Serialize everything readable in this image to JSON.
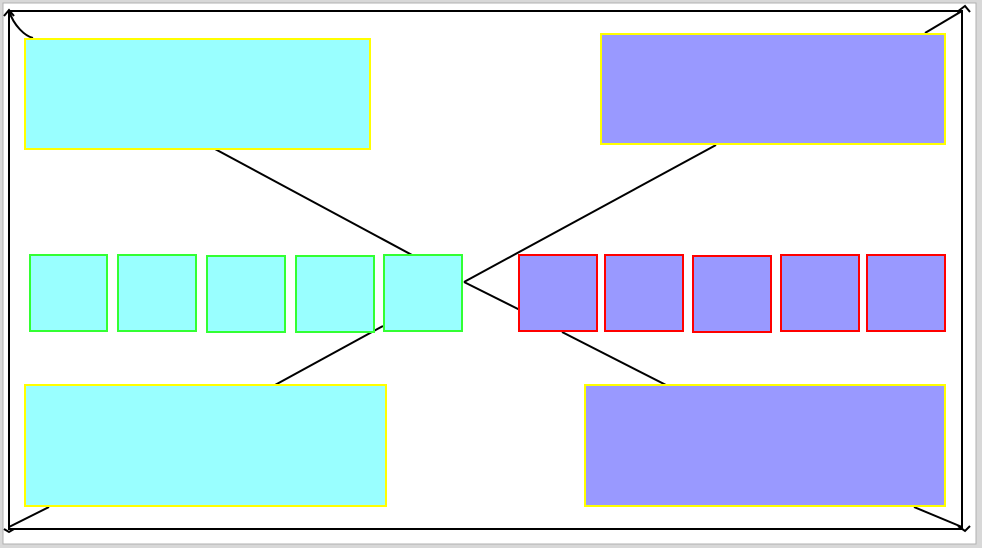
{
  "diagram": {
    "colors": {
      "page_bg": "#d8d8d8",
      "canvas_bg": "#ffffff",
      "outline": "#000000",
      "cyan_fill": "#99ffff",
      "blue_fill": "#9999ff",
      "yellow_border": "#ffff00",
      "green_border": "#33ff33",
      "red_border": "#ff0000"
    },
    "boxes": {
      "top_left": {
        "fill": "cyan_fill",
        "border": "yellow_border"
      },
      "top_right": {
        "fill": "blue_fill",
        "border": "yellow_border"
      },
      "bottom_left": {
        "fill": "cyan_fill",
        "border": "yellow_border"
      },
      "bottom_right": {
        "fill": "blue_fill",
        "border": "yellow_border"
      }
    },
    "small_boxes_left": [
      {
        "fill": "cyan_fill",
        "border": "green_border"
      },
      {
        "fill": "cyan_fill",
        "border": "green_border"
      },
      {
        "fill": "cyan_fill",
        "border": "green_border"
      },
      {
        "fill": "cyan_fill",
        "border": "green_border"
      },
      {
        "fill": "cyan_fill",
        "border": "green_border"
      }
    ],
    "small_boxes_right": [
      {
        "fill": "blue_fill",
        "border": "red_border"
      },
      {
        "fill": "blue_fill",
        "border": "red_border"
      },
      {
        "fill": "blue_fill",
        "border": "red_border"
      },
      {
        "fill": "blue_fill",
        "border": "red_border"
      },
      {
        "fill": "blue_fill",
        "border": "red_border"
      }
    ]
  }
}
